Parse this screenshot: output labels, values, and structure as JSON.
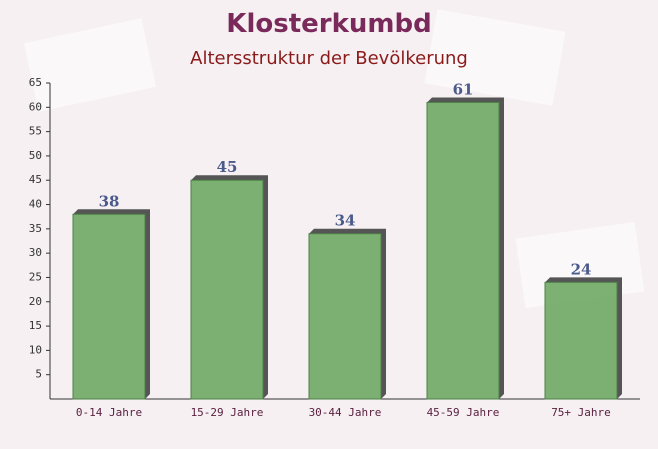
{
  "chart_data": {
    "type": "bar",
    "title": "Klosterkumbd",
    "subtitle": "Altersstruktur der Bevölkerung",
    "categories": [
      "0-14 Jahre",
      "15-29 Jahre",
      "30-44 Jahre",
      "45-59 Jahre",
      "75+ Jahre"
    ],
    "values": [
      38,
      45,
      34,
      61,
      24
    ],
    "color": "#6ea864",
    "ylim": [
      0,
      65
    ],
    "yticks": [
      5,
      10,
      15,
      20,
      25,
      30,
      35,
      40,
      45,
      50,
      55,
      60,
      65
    ],
    "grid": false
  }
}
